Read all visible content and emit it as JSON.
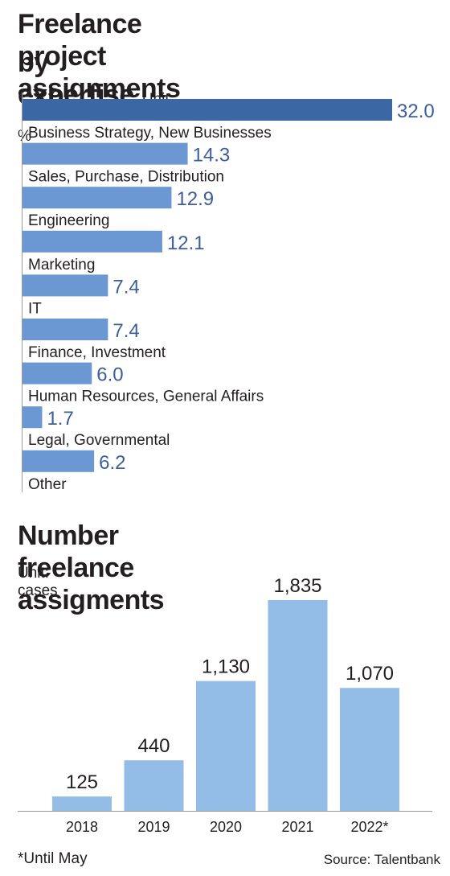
{
  "chart_data": [
    {
      "type": "bar",
      "orientation": "horizontal",
      "title": "Freelance project assignments by expertise",
      "unit": "Unit: %",
      "categories": [
        "Business Strategy, New Businesses",
        "Sales, Purchase, Distribution",
        "Engineering",
        "Marketing",
        "IT",
        "Finance, Investment",
        "Human Resources, General Affairs",
        "Legal, Governmental",
        "Other"
      ],
      "values": [
        32.0,
        14.3,
        12.9,
        12.1,
        7.4,
        7.4,
        6.0,
        1.7,
        6.2
      ],
      "value_labels": [
        "32.0",
        "14.3",
        "12.9",
        "12.1",
        "7.4",
        "7.4",
        "6.0",
        "1.7",
        "6.2"
      ],
      "colors": {
        "highlight": "#3c67a5",
        "bar": "#6b97d2",
        "label": "#3c5f9c",
        "axis": "#999999"
      }
    },
    {
      "type": "bar",
      "title": "Number freelance assigments",
      "unit": "Unit: cases",
      "categories": [
        "2018",
        "2019",
        "2020",
        "2021",
        "2022*"
      ],
      "values": [
        125,
        440,
        1130,
        1835,
        1070
      ],
      "value_labels": [
        "125",
        "440",
        "1,130",
        "1,835",
        "1,070"
      ],
      "colors": {
        "bar": "#93bde6",
        "baseline": "#999999"
      }
    }
  ],
  "footnote": "*Until May",
  "source": "Source: Talentbank"
}
